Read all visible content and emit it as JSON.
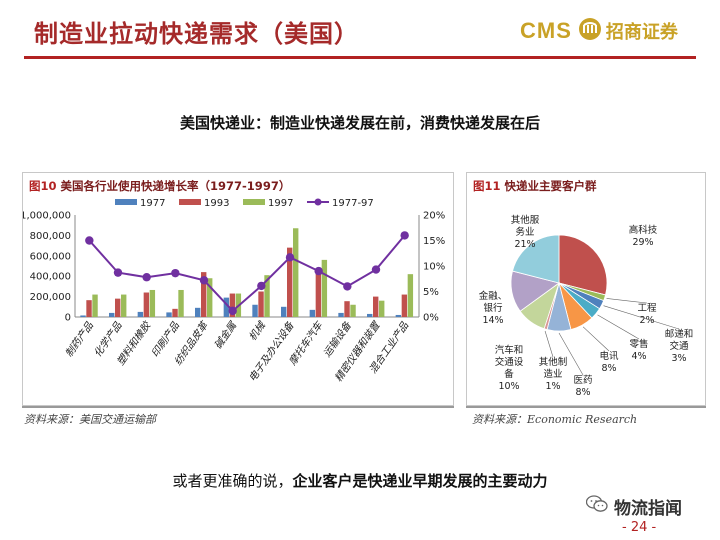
{
  "header": {
    "title": "制造业拉动快递需求（美国）",
    "logo_cms": "CMS",
    "logo_cn": "招商证券"
  },
  "subtitle": "美国快递业：制造业快递发展在前，消费快递发展在后",
  "bar_panel": {
    "figure_no": "图10",
    "title": "美国各行业使用快递增长率（1977-1997）",
    "source": "资料来源：美国交通运输部"
  },
  "pie_panel": {
    "figure_no": "图11",
    "title": "快递业主要客户群",
    "source": "资料来源：Economic Research"
  },
  "conclusion": {
    "prefix": "或者更准确的说，",
    "emphasis": "企业客户是快递业早期发展的主要动力"
  },
  "watermark": "物流指闻",
  "page_number": "- 24 -",
  "colors": {
    "title_red": "#a52a2a",
    "gold": "#c9a227",
    "series_1977": "#4f81bd",
    "series_1993": "#c0504d",
    "series_1997": "#9bbb59",
    "series_growth": "#7030a0"
  },
  "chart_data": [
    {
      "type": "bar",
      "title": "美国各行业使用快递增长率（1977-1997）",
      "categories": [
        "制药产品",
        "化学产品",
        "塑料和橡胶",
        "印刷产品",
        "纺织品皮革",
        "碱金属",
        "机械",
        "电子及办公设备",
        "摩托车汽车",
        "运输设备",
        "精密仪器和装置",
        "混合工业产品"
      ],
      "series": [
        {
          "name": "1977",
          "axis": "left",
          "color": "#4f81bd",
          "values": [
            15000,
            40000,
            50000,
            45000,
            90000,
            190000,
            120000,
            100000,
            70000,
            40000,
            30000,
            20000
          ]
        },
        {
          "name": "1993",
          "axis": "left",
          "color": "#c0504d",
          "values": [
            165000,
            180000,
            240000,
            80000,
            440000,
            230000,
            250000,
            680000,
            460000,
            155000,
            200000,
            220000
          ]
        },
        {
          "name": "1997",
          "axis": "left",
          "color": "#9bbb59",
          "values": [
            220000,
            220000,
            265000,
            265000,
            380000,
            230000,
            410000,
            870000,
            560000,
            120000,
            160000,
            420000
          ]
        },
        {
          "name": "1977-97",
          "axis": "right",
          "type": "line",
          "color": "#7030a0",
          "values": [
            15.0,
            8.7,
            7.8,
            8.6,
            7.2,
            1.2,
            6.1,
            11.7,
            9.0,
            6.0,
            9.3,
            16.0
          ]
        }
      ],
      "left_axis": {
        "ylim": [
          0,
          1000000
        ],
        "ticks": [
          "0",
          "200,000",
          "400,000",
          "600,000",
          "800,000",
          "1,000,000"
        ],
        "tick_values": [
          0,
          200000,
          400000,
          600000,
          800000,
          1000000
        ]
      },
      "right_axis": {
        "ylim": [
          0,
          20
        ],
        "ticks": [
          "0%",
          "5%",
          "10%",
          "15%",
          "20%"
        ],
        "tick_values": [
          0,
          5,
          10,
          15,
          20
        ]
      },
      "legend_position": "top",
      "grid": false
    },
    {
      "type": "pie",
      "title": "快递业主要客户群",
      "slices": [
        {
          "label": "高科技",
          "value": 29,
          "display": "29%",
          "color": "#c0504d"
        },
        {
          "label": "工程",
          "value": 2,
          "display": "2%",
          "color": "#9bbb59"
        },
        {
          "label": "邮递和交通",
          "value": 3,
          "display": "3%",
          "color": "#4f81bd"
        },
        {
          "label": "零售",
          "value": 4,
          "display": "4%",
          "color": "#4bacc6"
        },
        {
          "label": "电讯",
          "value": 8,
          "display": "8%",
          "color": "#f79646"
        },
        {
          "label": "医药",
          "value": 8,
          "display": "8%",
          "color": "#95b3d7"
        },
        {
          "label": "其他制造业",
          "value": 1,
          "display": "1%",
          "color": "#d99694"
        },
        {
          "label": "汽车和交通设备",
          "value": 10,
          "display": "10%",
          "color": "#c3d69b"
        },
        {
          "label": "金融、银行",
          "value": 14,
          "display": "14%",
          "color": "#b2a1c7"
        },
        {
          "label": "其他服务业",
          "value": 21,
          "display": "21%",
          "color": "#92cddc"
        }
      ]
    }
  ]
}
